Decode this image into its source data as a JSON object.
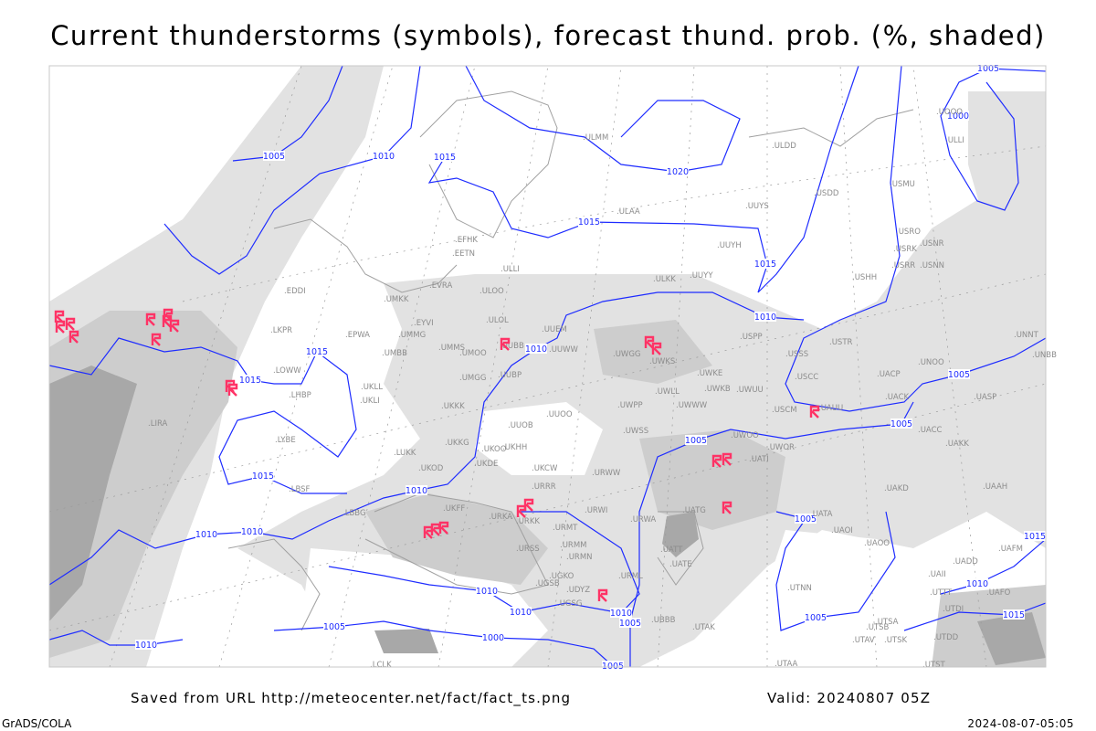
{
  "title": "Current thunderstorms (symbols), forecast thund. prob. (%, shaded)",
  "footer": {
    "saved": "Saved from URL http://meteocenter.net/fact/fact_ts.png",
    "valid": "Valid: 20240807 05Z",
    "software": "GrADS/COLA",
    "timestamp": "2024-08-07-05:05"
  },
  "colors": {
    "isobar": "#1e2cff",
    "thunderstorm_symbol": "#ff3366",
    "coastline": "#a0a0a0",
    "shading_light": "#e2e2e2",
    "shading_mid": "#cdcdcd",
    "shading_dark": "#a8a8a8"
  },
  "symbols": {
    "thunderstorm": "thunderstorm-symbol-icon"
  },
  "isobar_labels": [
    "1005",
    "1010",
    "1015",
    "1020",
    "1015",
    "1015",
    "1005",
    "1000",
    "1010",
    "1015",
    "1015",
    "1010",
    "1005",
    "1005",
    "1005",
    "1015",
    "1010",
    "1010",
    "1010",
    "1005",
    "1015",
    "1010",
    "1010",
    "1010",
    "1010",
    "1005",
    "1000",
    "1005",
    "1010",
    "1005",
    "1015",
    "1005"
  ],
  "stations": [
    "EDDI",
    "UMKK",
    "EVRA",
    "ULOO",
    "LKPR",
    "EPWA",
    "EYVI",
    "ULOL",
    "UUEM",
    "UMMG",
    "UMBB",
    "UMMS",
    "UMOO",
    "UUBB",
    "UUWW",
    "UWGG",
    "UWKS",
    "LOWW",
    "UKLL",
    "UKLI",
    "LHBP",
    "UMGG",
    "UUBP",
    "UKKK",
    "UWKE",
    "UWKB",
    "UWUU",
    "UWLL",
    "UWWW",
    "UWPP",
    "UUOO",
    "UUOB",
    "LIRA",
    "LYBE",
    "UKKG",
    "UKOO",
    "UKHH",
    "UKDE",
    "LUKK",
    "UKOD",
    "UKCW",
    "UWSS",
    "URWW",
    "URRR",
    "URWI",
    "URKA",
    "URKK",
    "UKFF",
    "LBSF",
    "LBBG",
    "URMT",
    "URMM",
    "URMN",
    "URSS",
    "URWA",
    "UATG",
    "UATT",
    "UATE",
    "URML",
    "UGKO",
    "UGSB",
    "UBBB",
    "UTAK",
    "ULDD",
    "USDD",
    "USMU",
    "UUYS",
    "UUYH",
    "USRO",
    "USRK",
    "USNR",
    "USRR",
    "USNN",
    "USHH",
    "UUYY",
    "ULKK",
    "USPP",
    "USTR",
    "USSS",
    "UNOO",
    "USCC",
    "UACP",
    "UACK",
    "UASP",
    "USCM",
    "UAUU",
    "UNNT",
    "UNBB",
    "ULLI",
    "UOOO",
    "ULMM",
    "ULAA",
    "EFHK",
    "EETN",
    "ULLI",
    "UWOO",
    "UWOR",
    "UATI",
    "UACC",
    "UAKK",
    "UAKD",
    "UAAH",
    "UATA",
    "UAOI",
    "UAOO",
    "UAFM",
    "UADD",
    "UTNN",
    "UAII",
    "UTTT",
    "UTDI",
    "UTSA",
    "UTSB",
    "UTAV",
    "UTSK",
    "UTDD",
    "UTST",
    "UTAA",
    "UAFO",
    "UGSG",
    "UDYZ",
    "LCLK"
  ]
}
